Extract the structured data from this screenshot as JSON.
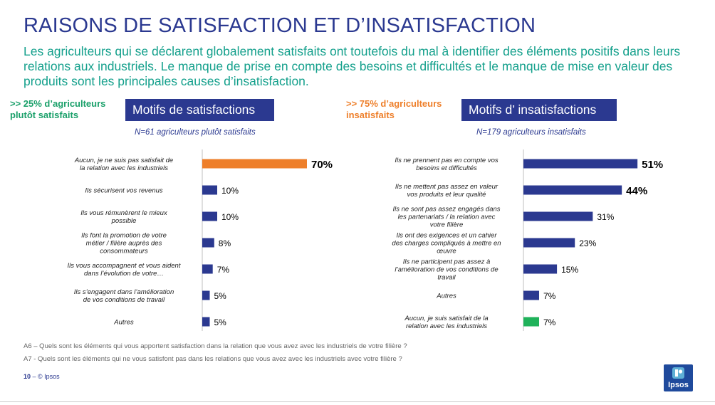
{
  "page": {
    "title": "RAISONS DE SATISFACTION ET D’INSATISFACTION",
    "subtitle": "Les agriculteurs qui se déclarent globalement satisfaits ont toutefois du mal à identifier des éléments positifs dans leurs relations aux industriels. Le manque de prise en compte des besoins et difficultés et le manque de mise en valeur des produits sont les principales causes d’insatisfaction.",
    "page_number": "10",
    "copyright": "– © Ipsos",
    "logo_text": "Ipsos",
    "footnotes": [
      "A6 – Quels sont les éléments qui vous apportent satisfaction dans la relation que vous avez avec les industriels de votre filière ?",
      "A7 - Quels sont les éléments qui ne vous satisfont pas dans les relations que vous avez avec les industriels avec votre filière ?"
    ]
  },
  "left_panel": {
    "callout": ">> 25% d’agriculteurs plutôt satisfaits",
    "panel_title": "Motifs de satisfactions",
    "sample_note": "N=61 agriculteurs plutôt satisfaits"
  },
  "right_panel": {
    "callout": ">> 75% d’agriculteurs insatisfaits",
    "panel_title": "Motifs d’ insatisfactions",
    "sample_note": "N=179 agriculteurs insatisfaits"
  },
  "colors": {
    "navy": "#2b3990",
    "orange": "#ee7f2a",
    "green": "#1fb25a",
    "teal": "#14a08c",
    "callout_green": "#1aa06a"
  },
  "chart_data": [
    {
      "type": "bar",
      "orientation": "horizontal",
      "title": "Motifs de satisfactions",
      "categories": [
        "Aucun, je ne suis pas satisfait de la relation avec les industriels",
        "Ils sécurisent vos revenus",
        "Ils vous rémunèrent le mieux possible",
        "Ils font la promotion de votre métier / filière auprès des consommateurs",
        "Ils vous accompagnent et vous aident dans l’évolution de votre…",
        "Ils s’engagent dans l’amélioration de vos conditions de travail",
        "Autres"
      ],
      "values": [
        70,
        10,
        10,
        8,
        7,
        5,
        5
      ],
      "value_labels": [
        "70%",
        "10%",
        "10%",
        "8%",
        "7%",
        "5%",
        "5%"
      ],
      "bar_colors": [
        "orange",
        "navy",
        "navy",
        "navy",
        "navy",
        "navy",
        "navy"
      ],
      "emphasized": [
        true,
        false,
        false,
        false,
        false,
        false,
        false
      ],
      "unit": "%",
      "xlim": [
        0,
        100
      ]
    },
    {
      "type": "bar",
      "orientation": "horizontal",
      "title": "Motifs d’ insatisfactions",
      "categories": [
        "Ils ne prennent pas en compte vos besoins et difficultés",
        "Ils ne mettent pas assez en valeur vos produits et leur qualité",
        "Ils ne sont pas assez engagés dans les partenariats / la relation avec votre filière",
        "Ils ont des exigences et un cahier des charges compliqués à mettre en œuvre",
        "Ils ne participent pas assez à l’amélioration de vos conditions de travail",
        "Autres",
        "Aucun, je suis satisfait de la relation avec les industriels"
      ],
      "values": [
        51,
        44,
        31,
        23,
        15,
        7,
        7
      ],
      "value_labels": [
        "51%",
        "44%",
        "31%",
        "23%",
        "15%",
        "7%",
        "7%"
      ],
      "bar_colors": [
        "navy",
        "navy",
        "navy",
        "navy",
        "navy",
        "navy",
        "green"
      ],
      "emphasized": [
        true,
        true,
        false,
        false,
        false,
        false,
        false
      ],
      "unit": "%",
      "xlim": [
        0,
        100
      ]
    }
  ]
}
